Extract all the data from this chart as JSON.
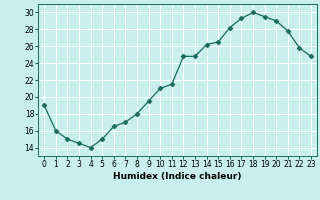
{
  "x": [
    0,
    1,
    2,
    3,
    4,
    5,
    6,
    7,
    8,
    9,
    10,
    11,
    12,
    13,
    14,
    15,
    16,
    17,
    18,
    19,
    20,
    21,
    22,
    23
  ],
  "y": [
    19,
    16,
    15,
    14.5,
    14,
    15,
    16.5,
    17,
    18,
    19.5,
    21,
    21.5,
    24.8,
    24.8,
    26.2,
    26.5,
    28.2,
    29.3,
    30,
    29.5,
    29,
    27.8,
    25.8,
    24.8
  ],
  "line_color": "#1a6b5a",
  "marker": "D",
  "marker_size": 2.5,
  "bg_color": "#c8eeee",
  "grid_color": "#ffffff",
  "xlabel": "Humidex (Indice chaleur)",
  "ylabel": "",
  "xlim": [
    -0.5,
    23.5
  ],
  "ylim": [
    13,
    31
  ],
  "yticks": [
    14,
    16,
    18,
    20,
    22,
    24,
    26,
    28,
    30
  ],
  "xticks": [
    0,
    1,
    2,
    3,
    4,
    5,
    6,
    7,
    8,
    9,
    10,
    11,
    12,
    13,
    14,
    15,
    16,
    17,
    18,
    19,
    20,
    21,
    22,
    23
  ],
  "tick_fontsize": 5.5,
  "xlabel_fontsize": 6.5
}
